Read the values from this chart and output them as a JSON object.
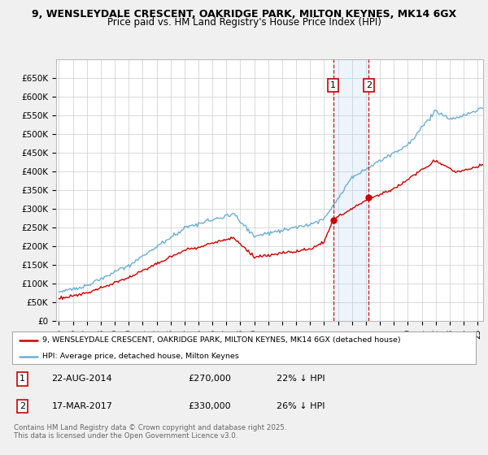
{
  "title_line1": "9, WENSLEYDALE CRESCENT, OAKRIDGE PARK, MILTON KEYNES, MK14 6GX",
  "title_line2": "Price paid vs. HM Land Registry's House Price Index (HPI)",
  "ylim": [
    0,
    700000
  ],
  "yticks": [
    0,
    50000,
    100000,
    150000,
    200000,
    250000,
    300000,
    350000,
    400000,
    450000,
    500000,
    550000,
    600000,
    650000
  ],
  "ytick_labels": [
    "£0",
    "£50K",
    "£100K",
    "£150K",
    "£200K",
    "£250K",
    "£300K",
    "£350K",
    "£400K",
    "£450K",
    "£500K",
    "£550K",
    "£600K",
    "£650K"
  ],
  "hpi_color": "#6baed6",
  "price_color": "#cc0000",
  "marker1_date": 2014.65,
  "marker1_price": 270000,
  "marker2_date": 2017.21,
  "marker2_price": 330000,
  "vline_color": "#cc0000",
  "vline_fill": "#ddeeff",
  "legend_line1": "9, WENSLEYDALE CRESCENT, OAKRIDGE PARK, MILTON KEYNES, MK14 6GX (detached house)",
  "legend_line2": "HPI: Average price, detached house, Milton Keynes",
  "table_row1": [
    "1",
    "22-AUG-2014",
    "£270,000",
    "22% ↓ HPI"
  ],
  "table_row2": [
    "2",
    "17-MAR-2017",
    "£330,000",
    "26% ↓ HPI"
  ],
  "footer": "Contains HM Land Registry data © Crown copyright and database right 2025.\nThis data is licensed under the Open Government Licence v3.0.",
  "bg_color": "#f0f0f0",
  "plot_bg": "#ffffff"
}
